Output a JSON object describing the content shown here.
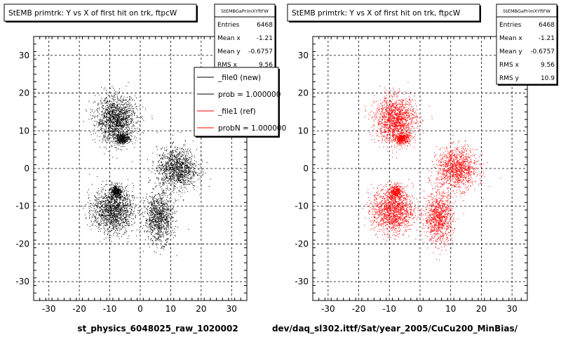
{
  "chart_data": [
    {
      "type": "scatter",
      "title": "StEMB primtrk: Y vs X of first hit on trk, ftpcW",
      "xlabel": "st_physics_6048025_raw_1020002",
      "ylabel": "",
      "xlim": [
        -35,
        35
      ],
      "ylim": [
        -35,
        35
      ],
      "x_ticks": [
        "-30",
        "-20",
        "-10",
        "0",
        "10",
        "20",
        "30"
      ],
      "y_ticks": [
        "30",
        "20",
        "10",
        "0",
        "-10",
        "-20",
        "-30"
      ],
      "grid": true,
      "point_color": "#000000",
      "stats": {
        "name": "StEMBGaPrimXYftFW",
        "rows": [
          {
            "label": "Entries",
            "value": "6468"
          },
          {
            "label": "Mean x",
            "value": "-1.21"
          },
          {
            "label": "Mean y",
            "value": "-0.6757"
          },
          {
            "label": "RMS x",
            "value": "9.56"
          }
        ]
      },
      "legend": {
        "placement": "top-right",
        "entries": [
          {
            "label": "_file0 (new)",
            "color": "#000000"
          },
          {
            "label": "prob = 1.000000",
            "color": "#000000"
          },
          {
            "label": "_file1 (ref)",
            "color": "#ff0000"
          },
          {
            "label": "probN = 1.000000",
            "color": "#ff0000"
          }
        ]
      },
      "clusters": [
        {
          "cx": -8,
          "cy": 13,
          "sx": 5.5,
          "sy": 5.0,
          "n": 1500
        },
        {
          "cx": -6,
          "cy": 8,
          "sx": 2.0,
          "sy": 1.2,
          "n": 400
        },
        {
          "cx": -9,
          "cy": -11,
          "sx": 5.5,
          "sy": 5.0,
          "n": 1500
        },
        {
          "cx": -8,
          "cy": -6,
          "sx": 1.5,
          "sy": 1.5,
          "n": 300
        },
        {
          "cx": 12,
          "cy": 0,
          "sx": 5.5,
          "sy": 4.5,
          "n": 1200
        },
        {
          "cx": 6,
          "cy": -13,
          "sx": 3.8,
          "sy": 5.5,
          "n": 1000
        }
      ]
    },
    {
      "type": "scatter",
      "title": "StEMB primtrk: Y vs X of first hit on trk, ftpcW",
      "xlabel": "dev/daq_sl302.ittf/Sat/year_2005/CuCu200_MinBias/",
      "ylabel": "",
      "xlim": [
        -35,
        35
      ],
      "ylim": [
        -35,
        35
      ],
      "x_ticks": [
        "-30",
        "-20",
        "-10",
        "0",
        "10",
        "20",
        "30"
      ],
      "y_ticks": [
        "30",
        "20",
        "10",
        "0",
        "-10",
        "-20",
        "-30"
      ],
      "grid": true,
      "point_color": "#ff0000",
      "stats": {
        "name": "StEMBGaPrimXYftFW",
        "rows": [
          {
            "label": "Entries",
            "value": "6468"
          },
          {
            "label": "Mean x",
            "value": "-1.21"
          },
          {
            "label": "Mean y",
            "value": "-0.6757"
          },
          {
            "label": "RMS x",
            "value": "9.56"
          },
          {
            "label": "RMS y",
            "value": "10.9"
          }
        ]
      },
      "clusters": [
        {
          "cx": -8,
          "cy": 13,
          "sx": 5.5,
          "sy": 5.0,
          "n": 1500
        },
        {
          "cx": -6,
          "cy": 8,
          "sx": 2.0,
          "sy": 1.2,
          "n": 400
        },
        {
          "cx": -9,
          "cy": -11,
          "sx": 5.5,
          "sy": 5.0,
          "n": 1500
        },
        {
          "cx": -8,
          "cy": -6,
          "sx": 1.5,
          "sy": 1.5,
          "n": 300
        },
        {
          "cx": 12,
          "cy": 0,
          "sx": 5.5,
          "sy": 4.5,
          "n": 1200
        },
        {
          "cx": 6,
          "cy": -13,
          "sx": 3.8,
          "sy": 5.5,
          "n": 1000
        }
      ]
    }
  ]
}
